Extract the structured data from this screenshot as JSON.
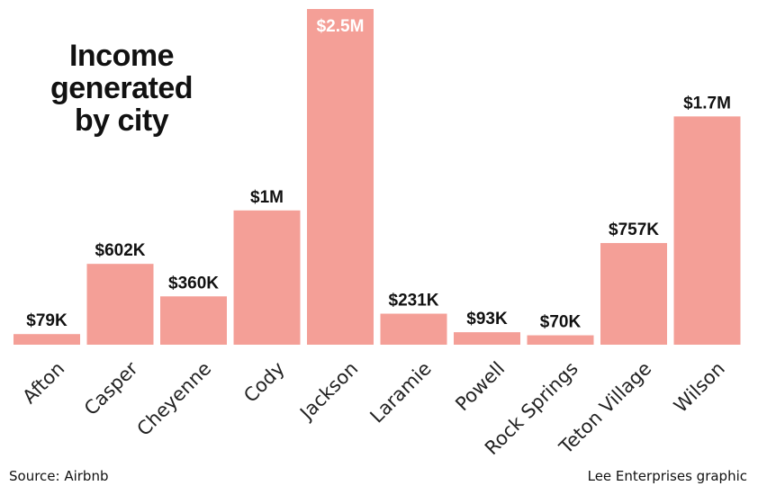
{
  "chart_data": {
    "type": "bar",
    "title": "Income generated by city",
    "title_lines": [
      "Income",
      "generated",
      "by city"
    ],
    "categories": [
      "Afton",
      "Casper",
      "Cheyenne",
      "Cody",
      "Jackson",
      "Laramie",
      "Powell",
      "Rock Springs",
      "Teton Village",
      "Wilson"
    ],
    "values": [
      79000,
      602000,
      360000,
      1000000,
      2500000,
      231000,
      93000,
      70000,
      757000,
      1700000
    ],
    "value_labels": [
      "$79K",
      "$602K",
      "$360K",
      "$1M",
      "$2.5M",
      "$231K",
      "$93K",
      "$70K",
      "$757K",
      "$1.7M"
    ],
    "xlabel": "",
    "ylabel": "",
    "ylim": [
      0,
      2500000
    ],
    "grid": false,
    "bar_color": "#f49f97"
  },
  "footer": {
    "source": "Source: Airbnb",
    "credit": "Lee Enterprises graphic"
  }
}
